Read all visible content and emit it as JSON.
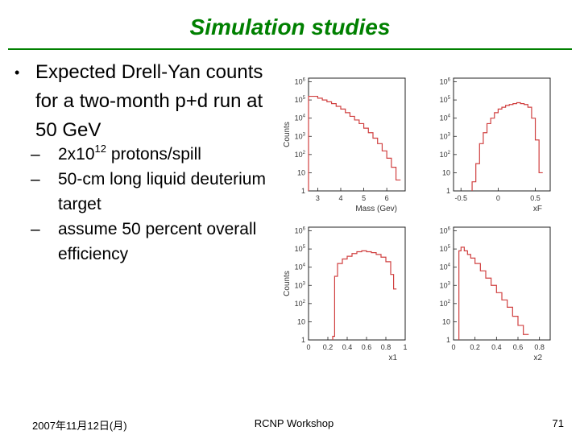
{
  "slide": {
    "title": "Simulation studies",
    "bullet": "Expected Drell-Yan counts for a two-month p+d run at 50 GeV",
    "sub_items": [
      {
        "pre": "2x10",
        "sup": "12",
        "post": " protons/spill"
      },
      {
        "text": "50-cm long liquid deuterium target"
      },
      {
        "text": "assume 50 percent overall efficiency"
      }
    ],
    "footer": {
      "date": "2007年11月12日(月)",
      "venue": "RCNP Workshop",
      "page": "71"
    }
  },
  "chart_data": [
    {
      "type": "line",
      "xlabel": "Mass (Gev)",
      "ylabel": "Counts",
      "x_ticks": [
        "3",
        "4",
        "5",
        "6"
      ],
      "y_ticks": [
        "1",
        "10",
        "10^2",
        "10^3",
        "10^4",
        "10^5",
        "10^6"
      ],
      "xlim": [
        2.6,
        6.8
      ],
      "log_y": true,
      "ylim_exp": [
        0,
        6.2
      ],
      "x": [
        2.6,
        2.8,
        3.0,
        3.2,
        3.4,
        3.6,
        3.8,
        4.0,
        4.2,
        4.4,
        4.6,
        4.8,
        5.0,
        5.2,
        5.4,
        5.6,
        5.8,
        6.0,
        6.2,
        6.4
      ],
      "log10_counts": [
        5.2,
        5.2,
        5.1,
        5.0,
        4.9,
        4.8,
        4.65,
        4.5,
        4.3,
        4.1,
        3.9,
        3.7,
        3.45,
        3.2,
        2.9,
        2.6,
        2.2,
        1.8,
        1.3,
        0.6
      ]
    },
    {
      "type": "line",
      "xlabel": "xF",
      "ylabel": "",
      "x_ticks": [
        "-0.5",
        "0",
        "0.5"
      ],
      "y_ticks": [
        "1",
        "10",
        "10^2",
        "10^3",
        "10^4",
        "10^5",
        "10^6"
      ],
      "xlim": [
        -0.6,
        0.7
      ],
      "log_y": true,
      "ylim_exp": [
        0,
        6.2
      ],
      "x": [
        -0.35,
        -0.3,
        -0.25,
        -0.2,
        -0.15,
        -0.1,
        -0.05,
        0,
        0.05,
        0.1,
        0.15,
        0.2,
        0.25,
        0.3,
        0.35,
        0.4,
        0.45,
        0.5,
        0.55
      ],
      "log10_counts": [
        0.5,
        1.5,
        2.6,
        3.2,
        3.7,
        4.0,
        4.3,
        4.5,
        4.6,
        4.7,
        4.75,
        4.8,
        4.85,
        4.8,
        4.75,
        4.6,
        4.0,
        2.8,
        1.0
      ]
    },
    {
      "type": "line",
      "xlabel": "x1",
      "ylabel": "Counts",
      "x_ticks": [
        "0",
        "0.2",
        "0.4",
        "0.6",
        "0.8",
        "1"
      ],
      "y_ticks": [
        "1",
        "10",
        "10^2",
        "10^3",
        "10^4",
        "10^5",
        "10^6"
      ],
      "xlim": [
        0,
        1.0
      ],
      "log_y": true,
      "ylim_exp": [
        0,
        6.2
      ],
      "x": [
        0.25,
        0.27,
        0.3,
        0.35,
        0.4,
        0.45,
        0.5,
        0.55,
        0.6,
        0.65,
        0.7,
        0.75,
        0.8,
        0.85,
        0.88
      ],
      "log10_counts": [
        0.2,
        3.5,
        4.2,
        4.45,
        4.6,
        4.75,
        4.85,
        4.9,
        4.85,
        4.8,
        4.7,
        4.55,
        4.3,
        3.6,
        2.8
      ]
    },
    {
      "type": "line",
      "xlabel": "x2",
      "ylabel": "",
      "x_ticks": [
        "0",
        "0.2",
        "0.4",
        "0.6",
        "0.8"
      ],
      "y_ticks": [
        "1",
        "10",
        "10^2",
        "10^3",
        "10^4",
        "10^5",
        "10^6"
      ],
      "xlim": [
        0,
        0.9
      ],
      "log_y": true,
      "ylim_exp": [
        0,
        6.2
      ],
      "x": [
        0.05,
        0.07,
        0.1,
        0.13,
        0.16,
        0.2,
        0.25,
        0.3,
        0.35,
        0.4,
        0.45,
        0.5,
        0.55,
        0.6,
        0.65
      ],
      "log10_counts": [
        4.9,
        5.1,
        4.9,
        4.7,
        4.5,
        4.2,
        3.8,
        3.4,
        3.0,
        2.6,
        2.2,
        1.8,
        1.3,
        0.8,
        0.3
      ]
    }
  ]
}
